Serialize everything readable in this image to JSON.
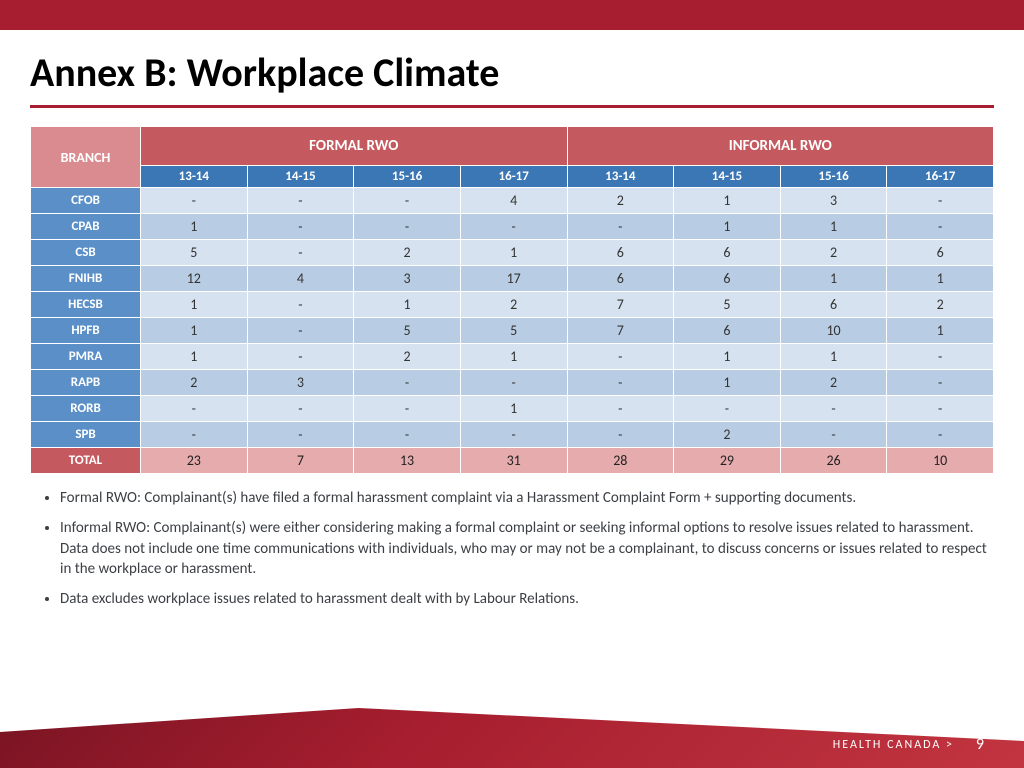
{
  "colors": {
    "brand_red": "#a61e2f",
    "header_red": "#c45a5f",
    "header_pink": "#d98b8f",
    "year_blue": "#3b77b5",
    "row_blue": "#5b8fc7",
    "cell_light": "#d6e2ef",
    "cell_dark": "#b8cde3",
    "total_pink": "#e6abad"
  },
  "title": "Annex B: Workplace Climate",
  "table": {
    "type": "table",
    "branch_label": "BRANCH",
    "groups": [
      "FORMAL RWO",
      "INFORMAL RWO"
    ],
    "years": [
      "13-14",
      "14-15",
      "15-16",
      "16-17"
    ],
    "rows": [
      {
        "label": "CFOB",
        "formal": [
          "-",
          "-",
          "-",
          "4"
        ],
        "informal": [
          "2",
          "1",
          "3",
          "-"
        ]
      },
      {
        "label": "CPAB",
        "formal": [
          "1",
          "-",
          "-",
          "-"
        ],
        "informal": [
          "-",
          "1",
          "1",
          "-"
        ]
      },
      {
        "label": "CSB",
        "formal": [
          "5",
          "-",
          "2",
          "1"
        ],
        "informal": [
          "6",
          "6",
          "2",
          "6"
        ]
      },
      {
        "label": "FNIHB",
        "formal": [
          "12",
          "4",
          "3",
          "17"
        ],
        "informal": [
          "6",
          "6",
          "1",
          "1"
        ]
      },
      {
        "label": "HECSB",
        "formal": [
          "1",
          "-",
          "1",
          "2"
        ],
        "informal": [
          "7",
          "5",
          "6",
          "2"
        ]
      },
      {
        "label": "HPFB",
        "formal": [
          "1",
          "-",
          "5",
          "5"
        ],
        "informal": [
          "7",
          "6",
          "10",
          "1"
        ]
      },
      {
        "label": "PMRA",
        "formal": [
          "1",
          "-",
          "2",
          "1"
        ],
        "informal": [
          "-",
          "1",
          "1",
          "-"
        ]
      },
      {
        "label": "RAPB",
        "formal": [
          "2",
          "3",
          "-",
          "-"
        ],
        "informal": [
          "-",
          "1",
          "2",
          "-"
        ]
      },
      {
        "label": "RORB",
        "formal": [
          "-",
          "-",
          "-",
          "1"
        ],
        "informal": [
          "-",
          "-",
          "-",
          "-"
        ]
      },
      {
        "label": "SPB",
        "formal": [
          "-",
          "-",
          "-",
          "-"
        ],
        "informal": [
          "-",
          "2",
          "-",
          "-"
        ]
      }
    ],
    "total": {
      "label": "TOTAL",
      "formal": [
        "23",
        "7",
        "13",
        "31"
      ],
      "informal": [
        "28",
        "29",
        "26",
        "10"
      ]
    }
  },
  "bullets": [
    "Formal RWO: Complainant(s) have filed a formal harassment complaint via a Harassment Complaint Form + supporting documents.",
    "Informal RWO: Complainant(s) were either considering making a formal complaint or seeking informal options to resolve issues related to harassment. Data does not include one time communications with individuals, who may or may not be a complainant, to discuss concerns or issues related to respect in the workplace or  harassment.",
    "Data excludes workplace issues related to harassment dealt with by Labour Relations."
  ],
  "footer": {
    "org": "HEALTH CANADA",
    "chevron": ">",
    "page": "9"
  }
}
